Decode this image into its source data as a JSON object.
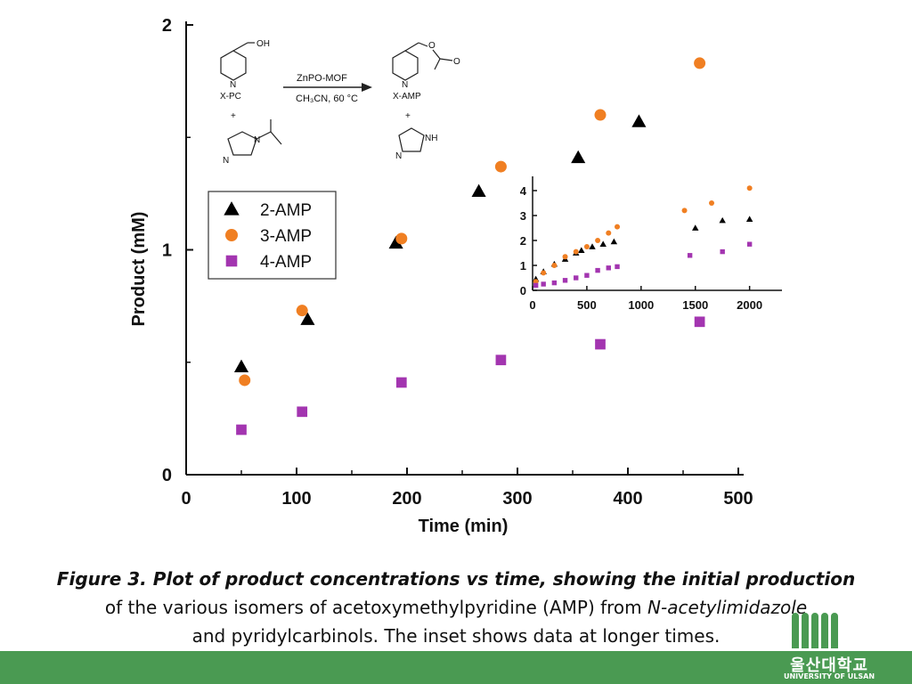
{
  "chart_data": [
    {
      "type": "scatter",
      "xlabel": "Time (min)",
      "ylabel": "Product (mM)",
      "xlim": [
        0,
        500
      ],
      "ylim": [
        0,
        2
      ],
      "x_ticks": [
        "0",
        "100",
        "200",
        "300",
        "400",
        "500"
      ],
      "y_ticks": [
        "0",
        "1",
        "2"
      ],
      "legend": {
        "position": "left",
        "entries": [
          "2-AMP",
          "3-AMP",
          "4-AMP"
        ]
      },
      "series": [
        {
          "name": "2-AMP",
          "marker": "triangle",
          "color": "#000000",
          "points": [
            [
              50,
              0.48
            ],
            [
              110,
              0.69
            ],
            [
              190,
              1.03
            ],
            [
              265,
              1.26
            ],
            [
              355,
              1.41
            ],
            [
              410,
              1.57
            ]
          ]
        },
        {
          "name": "3-AMP",
          "marker": "circle",
          "color": "#f07f22",
          "points": [
            [
              53,
              0.42
            ],
            [
              105,
              0.73
            ],
            [
              195,
              1.05
            ],
            [
              285,
              1.37
            ],
            [
              375,
              1.6
            ],
            [
              465,
              1.83
            ]
          ]
        },
        {
          "name": "4-AMP",
          "marker": "square",
          "color": "#a335b0",
          "points": [
            [
              50,
              0.2
            ],
            [
              105,
              0.28
            ],
            [
              195,
              0.41
            ],
            [
              285,
              0.51
            ],
            [
              375,
              0.58
            ],
            [
              465,
              0.68
            ]
          ]
        }
      ]
    },
    {
      "type": "scatter",
      "role": "inset",
      "xlim": [
        0,
        2200
      ],
      "ylim": [
        0,
        4.5
      ],
      "x_ticks": [
        "0",
        "500",
        "1000",
        "1500",
        "2000"
      ],
      "y_ticks": [
        "0",
        "1",
        "2",
        "3",
        "4"
      ],
      "series": [
        {
          "name": "2-AMP",
          "marker": "triangle",
          "color": "#000000",
          "points": [
            [
              30,
              0.45
            ],
            [
              100,
              0.75
            ],
            [
              200,
              1.05
            ],
            [
              300,
              1.25
            ],
            [
              400,
              1.5
            ],
            [
              450,
              1.6
            ],
            [
              550,
              1.75
            ],
            [
              650,
              1.85
            ],
            [
              750,
              1.95
            ],
            [
              1500,
              2.5
            ],
            [
              1750,
              2.8
            ],
            [
              2000,
              2.85
            ]
          ]
        },
        {
          "name": "3-AMP",
          "marker": "circle",
          "color": "#f07f22",
          "points": [
            [
              30,
              0.35
            ],
            [
              100,
              0.7
            ],
            [
              200,
              1.0
            ],
            [
              300,
              1.35
            ],
            [
              400,
              1.55
            ],
            [
              500,
              1.75
            ],
            [
              600,
              2.0
            ],
            [
              700,
              2.3
            ],
            [
              780,
              2.55
            ],
            [
              1400,
              3.2
            ],
            [
              1650,
              3.5
            ],
            [
              2000,
              4.1
            ]
          ]
        },
        {
          "name": "4-AMP",
          "marker": "square",
          "color": "#a335b0",
          "points": [
            [
              30,
              0.2
            ],
            [
              100,
              0.25
            ],
            [
              200,
              0.3
            ],
            [
              300,
              0.4
            ],
            [
              400,
              0.5
            ],
            [
              500,
              0.6
            ],
            [
              600,
              0.8
            ],
            [
              700,
              0.9
            ],
            [
              780,
              0.95
            ],
            [
              1450,
              1.4
            ],
            [
              1750,
              1.55
            ],
            [
              2000,
              1.85
            ]
          ]
        }
      ]
    }
  ],
  "scheme": {
    "reactant1": "X-PC",
    "oh": "OH",
    "catalyst": "ZnPO-MOF",
    "conditions": "CH₃CN, 60 °C",
    "product1": "X-AMP",
    "plus": "+",
    "n": "N",
    "nh": "NH",
    "o": "O"
  },
  "caption": {
    "lead": "Figure 3. Plot of product concentrations vs time, showing the initial production",
    "line2_pre": "of the various isomers of acetoxymethylpyridine (AMP) from ",
    "line2_italic": "N-acetylimidazole",
    "line3": "and pyridylcarbinols. The inset shows data at longer times."
  },
  "logo": {
    "korean": "울산대학교",
    "english": "UNIVERSITY OF ULSAN"
  },
  "colors": {
    "band": "#4a9a52",
    "amp2": "#000000",
    "amp3": "#f07f22",
    "amp4": "#a335b0"
  }
}
